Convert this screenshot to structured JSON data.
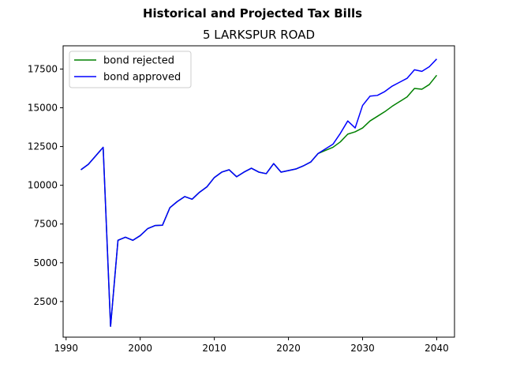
{
  "chart_data": {
    "type": "line",
    "suptitle": "Historical and Projected Tax Bills",
    "title": "5 LARKSPUR ROAD",
    "xlabel": "",
    "ylabel": "",
    "xlim": [
      1989.6,
      2042.4
    ],
    "ylim": [
      200,
      19000
    ],
    "x_ticks": [
      1990,
      2000,
      2010,
      2020,
      2030,
      2040
    ],
    "y_ticks": [
      2500,
      5000,
      7500,
      10000,
      12500,
      15000,
      17500
    ],
    "grid": false,
    "legend_position": "upper left",
    "series": [
      {
        "name": "bond rejected",
        "color": "#008000",
        "x": [
          1992,
          1993,
          1994,
          1995,
          1996,
          1997,
          1998,
          1999,
          2000,
          2001,
          2002,
          2003,
          2004,
          2005,
          2006,
          2007,
          2008,
          2009,
          2010,
          2011,
          2012,
          2013,
          2014,
          2015,
          2016,
          2017,
          2018,
          2019,
          2020,
          2021,
          2022,
          2023,
          2024,
          2025,
          2026,
          2027,
          2028,
          2029,
          2030,
          2031,
          2032,
          2033,
          2034,
          2035,
          2036,
          2037,
          2038,
          2039,
          2040
        ],
        "values": [
          11000,
          11350,
          11900,
          12450,
          900,
          6450,
          6650,
          6450,
          6750,
          7200,
          7400,
          7420,
          8550,
          8950,
          9270,
          9100,
          9550,
          9900,
          10500,
          10850,
          11000,
          10550,
          10850,
          11100,
          10850,
          10750,
          11400,
          10850,
          10950,
          11050,
          11250,
          11500,
          12050,
          12250,
          12450,
          12800,
          13300,
          13450,
          13700,
          14150,
          14450,
          14750,
          15100,
          15400,
          15700,
          16250,
          16200,
          16500,
          17100
        ]
      },
      {
        "name": "bond approved",
        "color": "#0000ff",
        "x": [
          1992,
          1993,
          1994,
          1995,
          1996,
          1997,
          1998,
          1999,
          2000,
          2001,
          2002,
          2003,
          2004,
          2005,
          2006,
          2007,
          2008,
          2009,
          2010,
          2011,
          2012,
          2013,
          2014,
          2015,
          2016,
          2017,
          2018,
          2019,
          2020,
          2021,
          2022,
          2023,
          2024,
          2025,
          2026,
          2027,
          2028,
          2029,
          2030,
          2031,
          2032,
          2033,
          2034,
          2035,
          2036,
          2037,
          2038,
          2039,
          2040
        ],
        "values": [
          11000,
          11350,
          11900,
          12450,
          900,
          6450,
          6650,
          6450,
          6750,
          7200,
          7400,
          7420,
          8550,
          8950,
          9270,
          9100,
          9550,
          9900,
          10500,
          10850,
          11000,
          10550,
          10850,
          11100,
          10850,
          10750,
          11400,
          10850,
          10950,
          11050,
          11250,
          11500,
          12050,
          12350,
          12650,
          13350,
          14150,
          13700,
          15150,
          15750,
          15800,
          16050,
          16400,
          16650,
          16900,
          17450,
          17350,
          17650,
          18150
        ]
      }
    ]
  }
}
